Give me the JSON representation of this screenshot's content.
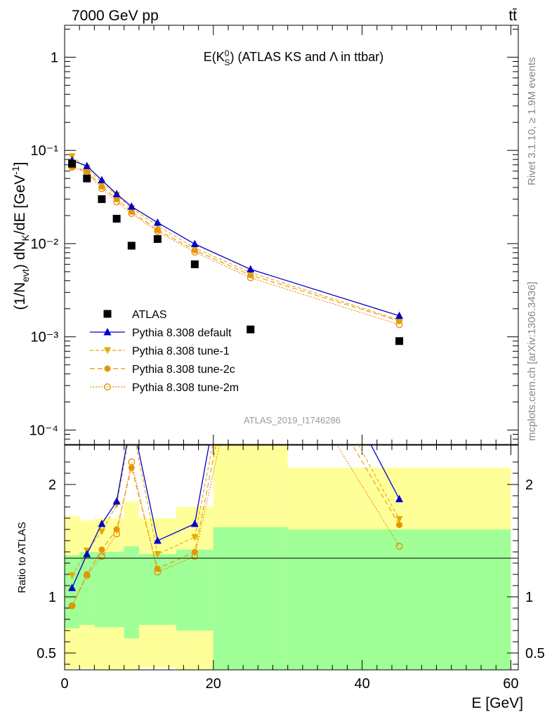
{
  "header": {
    "energy_label": "7000 GeV pp",
    "process_label": "tt̄"
  },
  "side_labels": {
    "rivet": "Rivet 3.1.10, ≥ 1.9M events",
    "mcplots": "mcplots.cern.ch [arXiv:1306.3436]"
  },
  "plot_title": "E(K⁰_S) (ATLAS KS and Λ in ttbar)",
  "analysis_id": "ATLAS_2019_I1746286",
  "axes": {
    "ylabel_main": "(1/N_evt) dN_K/dE [GeV⁻¹]",
    "ylabel_ratio": "Ratio to ATLAS",
    "xlabel": "E [GeV]",
    "x_ticks": [
      "0",
      "20",
      "40",
      "60"
    ],
    "y_ticks_main": [
      "1",
      "10⁻¹",
      "10⁻²",
      "10⁻³",
      "10⁻⁴"
    ],
    "y_ticks_ratio": [
      "2",
      "1",
      "0.5"
    ]
  },
  "colors": {
    "data": "#000000",
    "default": "#0000cc",
    "tune1": "#e6a800",
    "tune2c": "#e69500",
    "tune2m": "#e68a00",
    "band_inner": "#a0ff96",
    "band_outer": "#ffff9a"
  },
  "chart_data": {
    "type": "line",
    "x_scale": "linear",
    "y_scale": "log",
    "xlim": [
      0,
      61
    ],
    "ylim": [
      7e-05,
      2.2
    ],
    "ratio_ylim": [
      0.35,
      2.35
    ],
    "x": [
      1.0,
      3.0,
      5.0,
      7.0,
      9.0,
      12.5,
      17.5,
      25.0,
      45.0
    ],
    "bin_edges": [
      0,
      2,
      4,
      6,
      8,
      10,
      15,
      20,
      30,
      60
    ],
    "series": [
      {
        "name": "ATLAS",
        "style": "data",
        "values": [
          0.072,
          0.05,
          0.03,
          0.0185,
          0.0095,
          0.0112,
          0.006,
          0.0012,
          0.0009
        ]
      },
      {
        "name": "Pythia 8.308 default",
        "style": "default",
        "values": [
          0.078,
          0.068,
          0.048,
          0.034,
          0.025,
          0.0168,
          0.0099,
          0.0053,
          0.00168
        ]
      },
      {
        "name": "Pythia 8.308 tune-1",
        "style": "tune1",
        "values": [
          0.086,
          0.065,
          0.045,
          0.033,
          0.024,
          0.0155,
          0.009,
          0.0049,
          0.00152
        ]
      },
      {
        "name": "Pythia 8.308 tune-2c",
        "style": "tune2c",
        "values": [
          0.067,
          0.06,
          0.041,
          0.03,
          0.022,
          0.014,
          0.0085,
          0.0046,
          0.00148
        ]
      },
      {
        "name": "Pythia 8.308 tune-2m",
        "style": "tune2m",
        "values": [
          0.066,
          0.058,
          0.039,
          0.028,
          0.021,
          0.0135,
          0.0081,
          0.0043,
          0.00135
        ]
      }
    ],
    "ratio_series": [
      {
        "name": "Pythia 8.308 default",
        "style": "default",
        "values": [
          1.08,
          1.38,
          1.65,
          1.85,
          2.6,
          1.5,
          1.65,
          4.4,
          1.87
        ]
      },
      {
        "name": "Pythia 8.308 tune-1",
        "style": "tune1",
        "values": [
          1.19,
          1.41,
          1.58,
          1.82,
          2.55,
          1.38,
          1.53,
          4.1,
          1.69
        ]
      },
      {
        "name": "Pythia 8.308 tune-2c",
        "style": "tune2c",
        "values": [
          0.92,
          1.2,
          1.42,
          1.6,
          2.15,
          1.25,
          1.4,
          3.9,
          1.64
        ]
      },
      {
        "name": "Pythia 8.308 tune-2m",
        "style": "tune2m",
        "values": [
          0.92,
          1.19,
          1.36,
          1.56,
          2.2,
          1.22,
          1.36,
          3.6,
          1.45
        ]
      }
    ],
    "ratio_bands": {
      "inner": [
        [
          0.72,
          1.37
        ],
        [
          0.75,
          1.4
        ],
        [
          0.73,
          1.4
        ],
        [
          0.73,
          1.4
        ],
        [
          0.63,
          1.45
        ],
        [
          0.75,
          1.38
        ],
        [
          0.7,
          1.42
        ],
        [
          0.34,
          1.62
        ],
        [
          0.34,
          1.6
        ]
      ],
      "outer": [
        [
          0.36,
          1.72
        ],
        [
          0.36,
          1.68
        ],
        [
          0.34,
          1.7
        ],
        [
          0.34,
          1.7
        ],
        [
          0.34,
          1.85
        ],
        [
          0.37,
          1.7
        ],
        [
          0.34,
          1.8
        ],
        [
          0.34,
          2.5
        ],
        [
          0.36,
          2.15
        ]
      ]
    }
  },
  "legend": [
    {
      "label": "ATLAS",
      "style": "data"
    },
    {
      "label": "Pythia 8.308 default",
      "style": "default"
    },
    {
      "label": "Pythia 8.308 tune-1",
      "style": "tune1"
    },
    {
      "label": "Pythia 8.308 tune-2c",
      "style": "tune2c"
    },
    {
      "label": "Pythia 8.308 tune-2m",
      "style": "tune2m"
    }
  ]
}
